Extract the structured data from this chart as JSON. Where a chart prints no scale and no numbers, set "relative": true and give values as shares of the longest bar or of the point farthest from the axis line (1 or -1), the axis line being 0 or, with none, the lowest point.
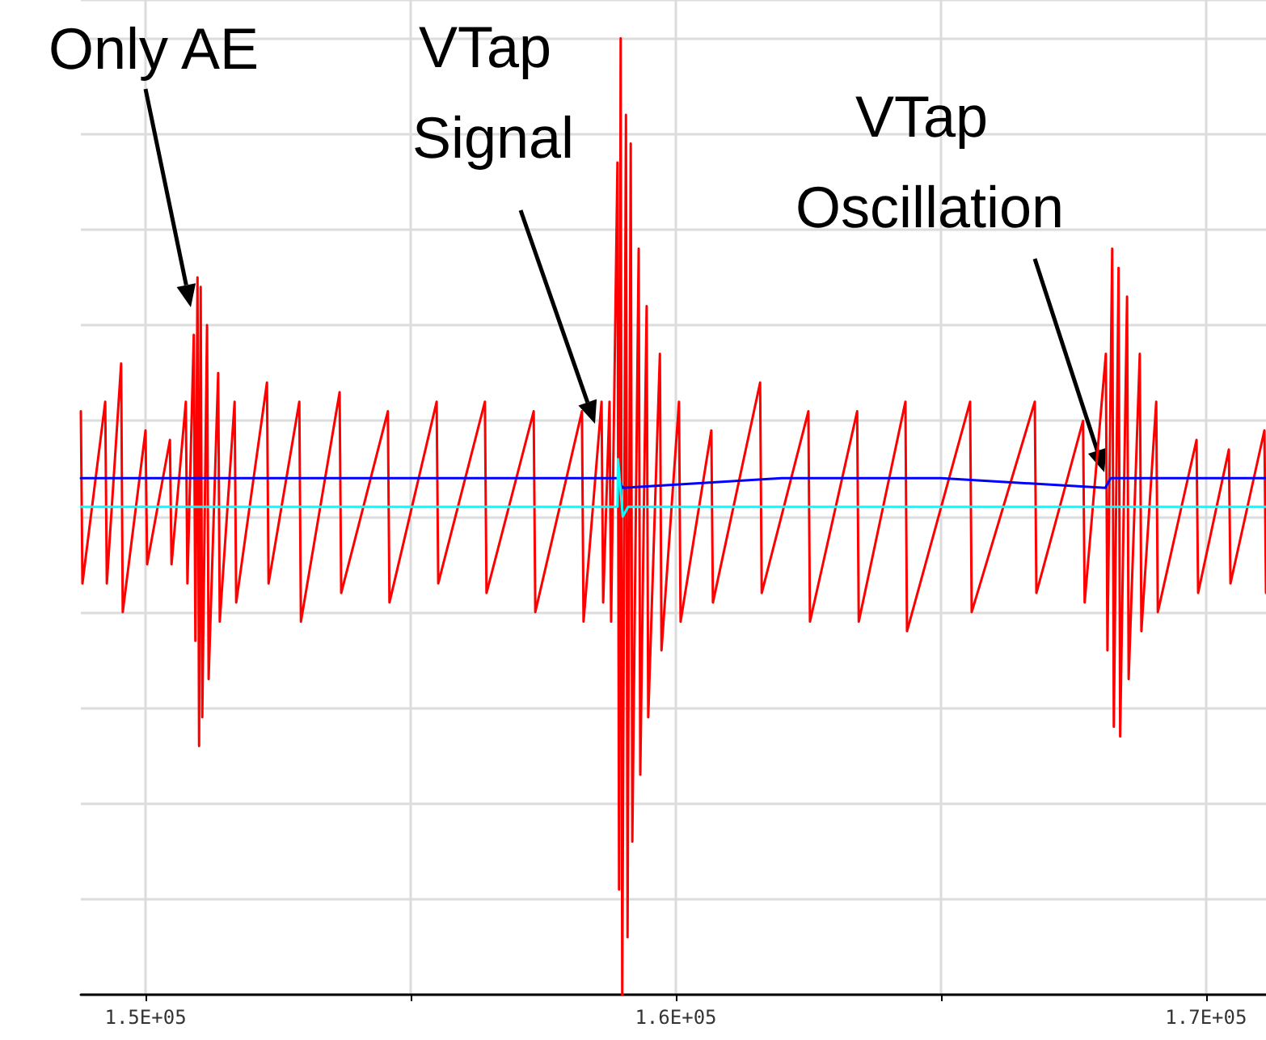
{
  "chart_data": {
    "type": "line",
    "relative": true,
    "grid": true,
    "marker": "none",
    "line_style": "solid",
    "xlim": [
      148780,
      171130
    ],
    "xticks": [
      {
        "value": 150000,
        "label": "1.5E+05"
      },
      {
        "value": 155000,
        "label": null
      },
      {
        "value": 160000,
        "label": "1.6E+05"
      },
      {
        "value": 165000,
        "label": null
      },
      {
        "value": 170000,
        "label": "1.7E+05"
      }
    ],
    "tick_labels": "x",
    "annotations": [
      "Only AE",
      "VTap Signal",
      "VTap Oscillation"
    ],
    "series": [
      {
        "color": "#ff0000",
        "x": [
          148780,
          148810,
          149240,
          149270,
          149540,
          149570,
          150000,
          150030,
          150460,
          150490,
          150760,
          150790,
          150910,
          150940,
          150980,
          151010,
          151040,
          151070,
          151160,
          151190,
          151370,
          151400,
          151680,
          151710,
          152290,
          152320,
          152900,
          152930,
          153660,
          153690,
          154570,
          154600,
          155490,
          155520,
          156400,
          156430,
          157320,
          157350,
          158230,
          158260,
          158600,
          158630,
          158750,
          158780,
          158900,
          158930,
          158960,
          158990,
          159060,
          159090,
          159150,
          159180,
          159300,
          159330,
          159450,
          159480,
          159700,
          159730,
          160060,
          160090,
          160670,
          160700,
          161590,
          161620,
          162500,
          162530,
          163420,
          163450,
          164330,
          164360,
          165550,
          165580,
          166770,
          166800,
          167680,
          167710,
          168110,
          168140,
          168230,
          168260,
          168350,
          168380,
          168510,
          168540,
          168750,
          168780,
          169060,
          169090,
          169820,
          169850,
          170430,
          170460,
          171100,
          171130
        ],
        "values": [
          0.61,
          0.43,
          0.62,
          0.43,
          0.66,
          0.4,
          0.59,
          0.45,
          0.58,
          0.45,
          0.62,
          0.43,
          0.69,
          0.37,
          0.75,
          0.26,
          0.74,
          0.29,
          0.7,
          0.33,
          0.65,
          0.39,
          0.62,
          0.41,
          0.64,
          0.43,
          0.62,
          0.39,
          0.63,
          0.42,
          0.61,
          0.41,
          0.62,
          0.43,
          0.62,
          0.42,
          0.61,
          0.4,
          0.61,
          0.39,
          0.62,
          0.41,
          0.62,
          0.39,
          0.87,
          0.11,
          1.0,
          0,
          0.92,
          0.06,
          0.89,
          0.16,
          0.78,
          0.23,
          0.72,
          0.29,
          0.67,
          0.36,
          0.62,
          0.39,
          0.59,
          0.41,
          0.64,
          0.42,
          0.61,
          0.39,
          0.61,
          0.39,
          0.62,
          0.38,
          0.62,
          0.4,
          0.62,
          0.42,
          0.6,
          0.41,
          0.67,
          0.36,
          0.78,
          0.28,
          0.76,
          0.27,
          0.73,
          0.33,
          0.67,
          0.38,
          0.62,
          0.4,
          0.58,
          0.42,
          0.57,
          0.43,
          0.59,
          0.42
        ]
      },
      {
        "color": "#0000ff",
        "x": [
          148780,
          152000,
          155000,
          158900,
          159000,
          162000,
          165000,
          168100,
          168200,
          171130
        ],
        "values": [
          0.54,
          0.54,
          0.54,
          0.54,
          0.53,
          0.54,
          0.54,
          0.53,
          0.54,
          0.54
        ]
      },
      {
        "color": "#00ffff",
        "x": [
          148780,
          155000,
          158900,
          158910,
          159000,
          159100,
          165000,
          171130
        ],
        "values": [
          0.51,
          0.51,
          0.51,
          0.56,
          0.5,
          0.51,
          0.51,
          0.51
        ]
      }
    ]
  }
}
